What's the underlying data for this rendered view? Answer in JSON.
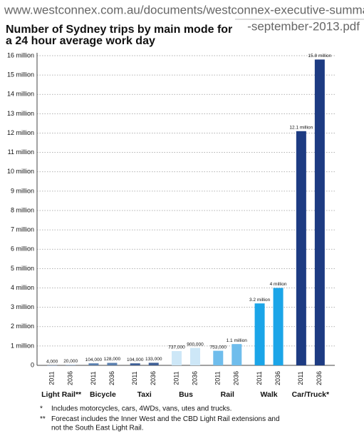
{
  "url": [
    "www.westconnex.com.au/documents/westconnex-executive-summary",
    "-september-2013.pdf"
  ],
  "chart_data": {
    "type": "bar",
    "title": [
      "Number of Sydney trips by main mode for",
      "a 24 hour average work day"
    ],
    "categories": [
      "Light Rail**",
      "Bicycle",
      "Taxi",
      "Bus",
      "Rail",
      "Walk",
      "Car/Truck*"
    ],
    "colors": [
      "#5a7fae",
      "#5a7fae",
      "#3f5f96",
      "#cde7f7",
      "#6fbdec",
      "#1ba5e8",
      "#1d3b82"
    ],
    "series": [
      {
        "name": "2011",
        "values": [
          4000,
          104000,
          104000,
          737000,
          753000,
          3200000,
          12100000
        ],
        "value_labels": [
          "4,000",
          "104,000",
          "104,000",
          "737,000",
          "753,000",
          "3.2 million",
          "12.1 million"
        ]
      },
      {
        "name": "2036",
        "values": [
          20000,
          128000,
          133000,
          900000,
          1100000,
          4000000,
          15800000
        ],
        "value_labels": [
          "20,000",
          "128,000",
          "133,000",
          "900,000",
          "1.1 million",
          "4 million",
          "15.8 million"
        ]
      }
    ],
    "ylim": [
      0,
      16000000
    ],
    "yticks": [
      0,
      {
        "value": 1000000,
        "label": "1 million"
      },
      {
        "value": 2000000,
        "label": "2 million"
      },
      {
        "value": 3000000,
        "label": "3 million"
      },
      {
        "value": 4000000,
        "label": "4 million"
      },
      {
        "value": 5000000,
        "label": "5 million"
      },
      {
        "value": 6000000,
        "label": "6 million"
      },
      {
        "value": 7000000,
        "label": "7 million"
      },
      {
        "value": 8000000,
        "label": "8 million"
      },
      {
        "value": 9000000,
        "label": "9 million"
      },
      {
        "value": 10000000,
        "label": "10 million"
      },
      {
        "value": 11000000,
        "label": "11 million"
      },
      {
        "value": 12000000,
        "label": "12 million"
      },
      {
        "value": 13000000,
        "label": "13 million"
      },
      {
        "value": 14000000,
        "label": "14 million"
      },
      {
        "value": 15000000,
        "label": "15 million"
      },
      {
        "value": 16000000,
        "label": "16 million"
      }
    ],
    "grid": true
  },
  "notes": [
    {
      "marker": "*",
      "lines": [
        "Includes motorcycles, cars, 4WDs, vans, utes and trucks."
      ]
    },
    {
      "marker": "**",
      "lines": [
        "Forecast includes the Inner West and the CBD Light Rail extensions and",
        "not the South East Light Rail."
      ]
    }
  ]
}
